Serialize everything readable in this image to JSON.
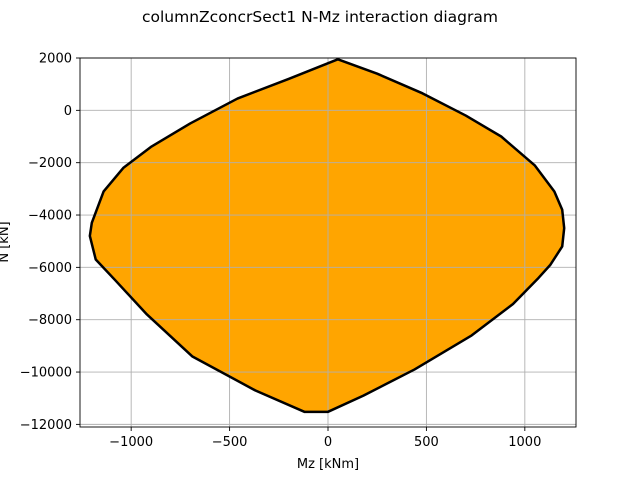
{
  "chart_data": {
    "type": "area",
    "title": "columnZconcrSect1 N-Mz interaction diagram",
    "xlabel": "Mz [kNm]",
    "ylabel": "N [kN]",
    "xlim": [
      -1260,
      1260
    ],
    "ylim": [
      -12100,
      2000
    ],
    "xticks": [
      -1000,
      -500,
      0,
      500,
      1000
    ],
    "xtick_labels": [
      "−1000",
      "−500",
      "0",
      "500",
      "1000"
    ],
    "yticks": [
      2000,
      0,
      -2000,
      -4000,
      -6000,
      -8000,
      -10000,
      -12000
    ],
    "ytick_labels": [
      "2000",
      "0",
      "−2000",
      "−4000",
      "−6000",
      "−8000",
      "−10000",
      "−12000"
    ],
    "grid": true,
    "series": [
      {
        "fill_color": "#ffa500",
        "edge_color": "#000000",
        "points": [
          {
            "x": 50,
            "y": 1950
          },
          {
            "x": 250,
            "y": 1400
          },
          {
            "x": 480,
            "y": 650
          },
          {
            "x": 700,
            "y": -200
          },
          {
            "x": 880,
            "y": -1000
          },
          {
            "x": 1050,
            "y": -2100
          },
          {
            "x": 1150,
            "y": -3100
          },
          {
            "x": 1190,
            "y": -3800
          },
          {
            "x": 1200,
            "y": -4500
          },
          {
            "x": 1190,
            "y": -5200
          },
          {
            "x": 1130,
            "y": -5900
          },
          {
            "x": 1070,
            "y": -6400
          },
          {
            "x": 940,
            "y": -7400
          },
          {
            "x": 730,
            "y": -8600
          },
          {
            "x": 440,
            "y": -9900
          },
          {
            "x": 180,
            "y": -10900
          },
          {
            "x": 0,
            "y": -11520
          },
          {
            "x": -120,
            "y": -11520
          },
          {
            "x": -370,
            "y": -10700
          },
          {
            "x": -690,
            "y": -9400
          },
          {
            "x": -920,
            "y": -7800
          },
          {
            "x": -1080,
            "y": -6500
          },
          {
            "x": -1180,
            "y": -5700
          },
          {
            "x": -1210,
            "y": -4800
          },
          {
            "x": -1200,
            "y": -4300
          },
          {
            "x": -1140,
            "y": -3100
          },
          {
            "x": -1040,
            "y": -2200
          },
          {
            "x": -900,
            "y": -1400
          },
          {
            "x": -700,
            "y": -500
          },
          {
            "x": -460,
            "y": 450
          },
          {
            "x": -200,
            "y": 1200
          },
          {
            "x": 50,
            "y": 1950
          }
        ]
      }
    ]
  }
}
